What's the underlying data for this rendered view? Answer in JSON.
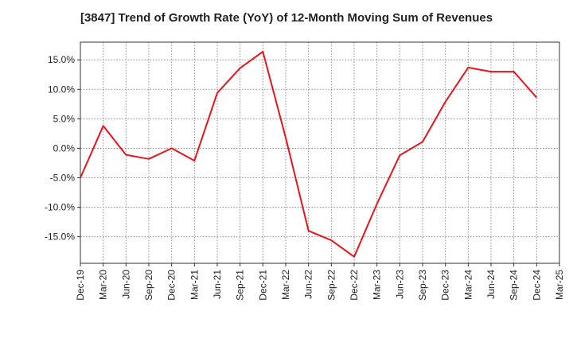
{
  "chart_data": {
    "type": "line",
    "title": "[3847]  Trend of Growth Rate (YoY) of 12-Month Moving Sum of Revenues",
    "xlabel": "",
    "ylabel": "",
    "x": [
      "Dec-19",
      "Mar-20",
      "Jun-20",
      "Sep-20",
      "Dec-20",
      "Mar-21",
      "Jun-21",
      "Sep-21",
      "Dec-21",
      "Mar-22",
      "Jun-22",
      "Sep-22",
      "Dec-22",
      "Mar-23",
      "Jun-23",
      "Sep-23",
      "Dec-23",
      "Mar-24",
      "Jun-24",
      "Sep-24",
      "Dec-24",
      "Mar-25"
    ],
    "series": [
      {
        "values": [
          -5.0,
          3.8,
          -1.1,
          -1.8,
          0.0,
          -2.1,
          9.4,
          13.6,
          16.4,
          1.8,
          -14.0,
          -15.6,
          -18.4,
          -9.4,
          -1.2,
          1.1,
          7.9,
          13.7,
          13.0,
          13.0,
          8.6,
          null
        ]
      }
    ],
    "y_ticks": [
      {
        "value": 15,
        "label": "15.0%"
      },
      {
        "value": 10,
        "label": "10.0%"
      },
      {
        "value": 5,
        "label": "5.0%"
      },
      {
        "value": 0,
        "label": "0.0%"
      },
      {
        "value": -5,
        "label": "-5.0%"
      },
      {
        "value": -10,
        "label": "-10.0%"
      },
      {
        "value": -15,
        "label": "-15.0%"
      }
    ],
    "ylim": [
      -19.5,
      18.0
    ],
    "grid": true,
    "line_color": "#e8141b"
  }
}
